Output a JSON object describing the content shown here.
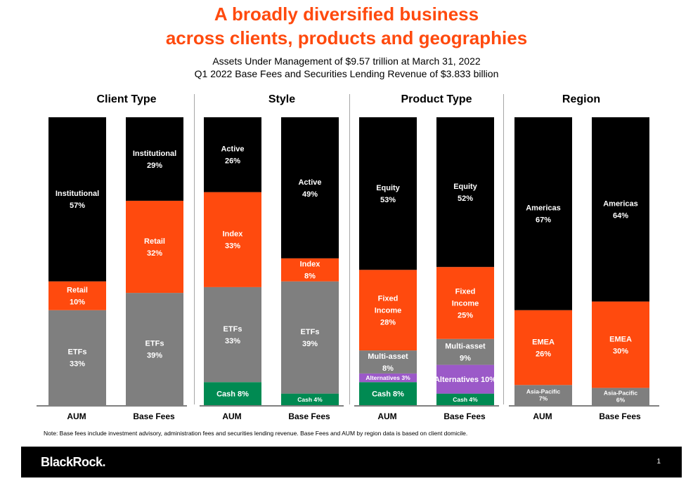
{
  "header": {
    "title_line1": "A broadly diversified business",
    "title_line2": "across clients, products and geographies",
    "subtitle_line1": "Assets Under Management of $9.57 trillion at March 31, 2022",
    "subtitle_line2": "Q1 2022 Base Fees and Securities Lending Revenue of $3.833 billion"
  },
  "colors": {
    "black": "#000000",
    "orange": "#ff4a0e",
    "gray": "#7f7f7f",
    "green": "#008a52",
    "purple": "#9b59c8"
  },
  "chart_data": [
    {
      "type": "bar",
      "stacked": true,
      "title": "Client Type",
      "categories": [
        "AUM",
        "Base Fees"
      ],
      "ylim": [
        0,
        100
      ],
      "series": [
        {
          "name": "ETFs",
          "values": [
            33,
            39
          ],
          "labels": [
            "ETFs\n33%",
            "ETFs\n39%"
          ],
          "color": "gray"
        },
        {
          "name": "Retail",
          "values": [
            10,
            32
          ],
          "labels": [
            "Retail\n10%",
            "Retail\n32%"
          ],
          "color": "orange"
        },
        {
          "name": "Institutional",
          "values": [
            57,
            29
          ],
          "labels": [
            "Institutional\n57%",
            "Institutional\n29%"
          ],
          "color": "black"
        }
      ]
    },
    {
      "type": "bar",
      "stacked": true,
      "title": "Style",
      "categories": [
        "AUM",
        "Base Fees"
      ],
      "ylim": [
        0,
        100
      ],
      "series": [
        {
          "name": "Cash",
          "values": [
            8,
            4
          ],
          "labels": [
            "Cash  8%",
            "Cash  4%"
          ],
          "color": "green"
        },
        {
          "name": "ETFs",
          "values": [
            33,
            39
          ],
          "labels": [
            "ETFs\n33%",
            "ETFs\n39%"
          ],
          "color": "gray"
        },
        {
          "name": "Index",
          "values": [
            33,
            8
          ],
          "labels": [
            "Index\n33%",
            "Index\n8%"
          ],
          "color": "orange"
        },
        {
          "name": "Active",
          "values": [
            26,
            49
          ],
          "labels": [
            "Active\n26%",
            "Active\n49%"
          ],
          "color": "black"
        }
      ]
    },
    {
      "type": "bar",
      "stacked": true,
      "title": "Product Type",
      "categories": [
        "AUM",
        "Base Fees"
      ],
      "ylim": [
        0,
        100
      ],
      "series": [
        {
          "name": "Cash",
          "values": [
            8,
            4
          ],
          "labels": [
            "Cash  8%",
            "Cash 4%"
          ],
          "color": "green"
        },
        {
          "name": "Alternatives",
          "values": [
            3,
            10
          ],
          "labels": [
            "Alternatives 3%",
            "Alternatives 10%"
          ],
          "color": "purple"
        },
        {
          "name": "Multi-asset",
          "values": [
            8,
            9
          ],
          "labels": [
            "Multi-asset\n8%",
            "Multi-asset\n9%"
          ],
          "color": "gray"
        },
        {
          "name": "Fixed Income",
          "values": [
            28,
            25
          ],
          "labels": [
            "Fixed\nIncome\n28%",
            "Fixed\nIncome\n25%"
          ],
          "color": "orange"
        },
        {
          "name": "Equity",
          "values": [
            53,
            52
          ],
          "labels": [
            "Equity\n53%",
            "Equity\n52%"
          ],
          "color": "black"
        }
      ]
    },
    {
      "type": "bar",
      "stacked": true,
      "title": "Region",
      "categories": [
        "AUM",
        "Base Fees"
      ],
      "ylim": [
        0,
        100
      ],
      "series": [
        {
          "name": "Asia-Pacific",
          "values": [
            7,
            6
          ],
          "labels": [
            "Asia-Pacific\n7%",
            "Asia-Pacific\n6%"
          ],
          "color": "gray"
        },
        {
          "name": "EMEA",
          "values": [
            26,
            30
          ],
          "labels": [
            "EMEA\n26%",
            "EMEA\n30%"
          ],
          "color": "orange"
        },
        {
          "name": "Americas",
          "values": [
            67,
            64
          ],
          "labels": [
            "Americas\n67%",
            "Americas\n64%"
          ],
          "color": "black"
        }
      ]
    }
  ],
  "note": "Note: Base fees include investment advisory, administration fees and securities lending revenue. Base Fees and AUM by region data is based on client domicile.",
  "footer": {
    "logo": "BlackRock.",
    "page_number": "1"
  }
}
